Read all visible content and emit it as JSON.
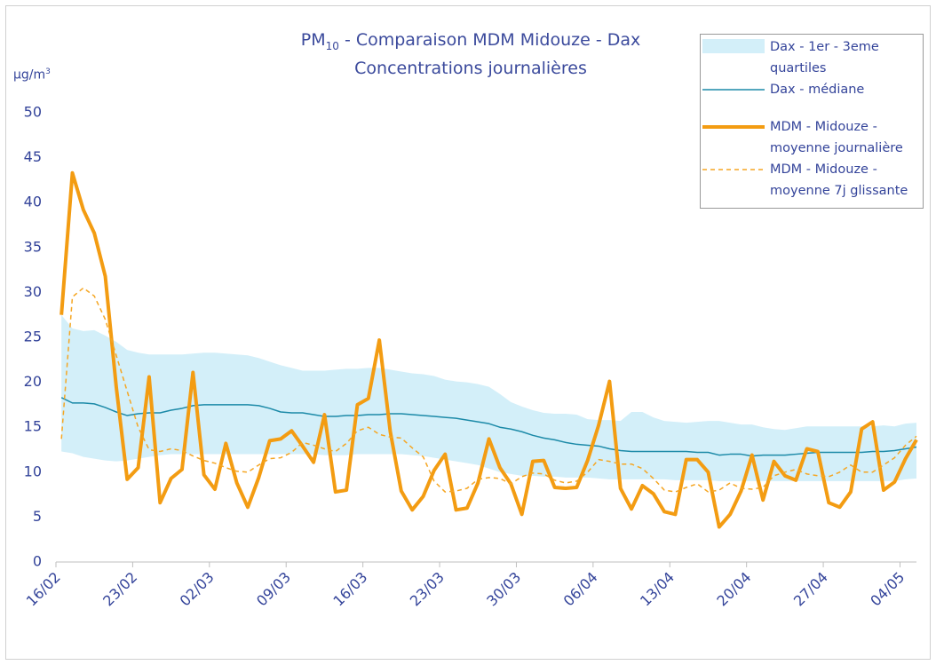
{
  "chart_data": {
    "type": "line",
    "title": {
      "main": "PM",
      "sub": "10",
      "rest": "- Comparaison MDM Midouze - Dax"
    },
    "subtitle": "Concentrations journalières",
    "y_label": {
      "unit": "µg/m",
      "sup": "3"
    },
    "ylim": [
      0,
      50
    ],
    "yticks": [
      0,
      5,
      10,
      15,
      20,
      25,
      30,
      35,
      40,
      45,
      50
    ],
    "grid": false,
    "legend": "top-right",
    "categories": [
      "16/02",
      null,
      null,
      null,
      null,
      null,
      null,
      "23/02",
      null,
      null,
      null,
      null,
      null,
      null,
      "02/03",
      null,
      null,
      null,
      null,
      null,
      null,
      "09/03",
      null,
      null,
      null,
      null,
      null,
      null,
      "16/03",
      null,
      null,
      null,
      null,
      null,
      null,
      "23/03",
      null,
      null,
      null,
      null,
      null,
      null,
      "30/03",
      null,
      null,
      null,
      null,
      null,
      null,
      "06/04",
      null,
      null,
      null,
      null,
      null,
      null,
      "13/04",
      null,
      null,
      null,
      null,
      null,
      null,
      "20/04",
      null,
      null,
      null,
      null,
      null,
      null,
      "27/04",
      null,
      null,
      null,
      null,
      null,
      null,
      "04/05",
      null
    ],
    "series": [
      {
        "name": "Dax - 1er - 3eme quartiles",
        "kind": "band",
        "color": "#d3eff9",
        "high": [
          27.5,
          26.0,
          25.7,
          25.8,
          25.2,
          24.5,
          23.6,
          23.3,
          23.1,
          23.1,
          23.1,
          23.1,
          23.2,
          23.3,
          23.3,
          23.2,
          23.1,
          23.0,
          22.7,
          22.3,
          21.9,
          21.6,
          21.3,
          21.3,
          21.3,
          21.4,
          21.5,
          21.5,
          21.6,
          21.6,
          21.4,
          21.2,
          21.0,
          20.9,
          20.7,
          20.3,
          20.1,
          20.0,
          19.8,
          19.5,
          18.7,
          17.8,
          17.3,
          16.9,
          16.6,
          16.5,
          16.5,
          16.4,
          15.9,
          15.8,
          15.8,
          15.7,
          16.7,
          16.7,
          16.1,
          15.7,
          15.6,
          15.5,
          15.6,
          15.7,
          15.7,
          15.5,
          15.3,
          15.3,
          15.0,
          14.8,
          14.7,
          14.9,
          15.1,
          15.1,
          15.1,
          15.1,
          15.1,
          15.1,
          15.1,
          15.2,
          15.1,
          15.4,
          15.5
        ],
        "low": [
          12.3,
          12.1,
          11.7,
          11.5,
          11.3,
          11.2,
          11.3,
          11.5,
          11.7,
          11.9,
          12.0,
          12.0,
          12.0,
          12.0,
          12.0,
          12.0,
          12.0,
          12.0,
          12.0,
          12.0,
          12.0,
          12.0,
          12.0,
          12.0,
          11.9,
          11.9,
          11.9,
          12.0,
          12.0,
          12.0,
          12.0,
          12.0,
          11.9,
          11.8,
          11.6,
          11.4,
          11.2,
          11.0,
          10.8,
          10.4,
          10.0,
          9.8,
          9.6,
          9.6,
          9.5,
          9.5,
          9.4,
          9.4,
          9.4,
          9.3,
          9.2,
          9.2,
          9.2,
          9.2,
          9.2,
          9.2,
          9.1,
          9.1,
          9.1,
          9.1,
          9.0,
          9.0,
          9.0,
          9.0,
          9.0,
          9.0,
          9.0,
          9.0,
          9.0,
          9.0,
          9.0,
          9.0,
          9.0,
          9.0,
          9.0,
          9.0,
          9.0,
          9.2,
          9.3
        ]
      },
      {
        "name": "Dax - médiane",
        "kind": "line",
        "color": "#1c8aa8",
        "width": 1.5,
        "values": [
          18.3,
          17.7,
          17.7,
          17.6,
          17.2,
          16.7,
          16.3,
          16.5,
          16.6,
          16.6,
          16.9,
          17.1,
          17.4,
          17.5,
          17.5,
          17.5,
          17.5,
          17.5,
          17.4,
          17.1,
          16.7,
          16.6,
          16.6,
          16.4,
          16.2,
          16.2,
          16.3,
          16.3,
          16.4,
          16.4,
          16.5,
          16.5,
          16.4,
          16.3,
          16.2,
          16.1,
          16.0,
          15.8,
          15.6,
          15.4,
          15.0,
          14.8,
          14.5,
          14.1,
          13.8,
          13.6,
          13.3,
          13.1,
          13.0,
          12.9,
          12.6,
          12.4,
          12.3,
          12.3,
          12.3,
          12.3,
          12.3,
          12.3,
          12.2,
          12.2,
          11.9,
          12.0,
          12.0,
          11.8,
          11.9,
          11.9,
          11.9,
          12.0,
          12.1,
          12.2,
          12.2,
          12.2,
          12.2,
          12.2,
          12.3,
          12.3,
          12.4,
          12.6,
          12.8
        ]
      },
      {
        "name": "MDM - Midouze - moyenne journalière",
        "kind": "line",
        "color": "#f39c12",
        "width": 4,
        "values": [
          27.5,
          43.3,
          39.2,
          36.6,
          31.8,
          19.5,
          9.2,
          10.5,
          20.6,
          6.6,
          9.3,
          10.3,
          21.1,
          9.7,
          8.1,
          13.2,
          8.8,
          6.1,
          9.4,
          13.5,
          13.7,
          14.6,
          12.9,
          11.1,
          16.4,
          7.8,
          8.0,
          17.5,
          18.2,
          24.7,
          14.5,
          7.9,
          5.8,
          7.3,
          10.2,
          12.0,
          5.8,
          6.0,
          8.8,
          13.7,
          10.5,
          8.7,
          5.3,
          11.2,
          11.3,
          8.3,
          8.2,
          8.3,
          11.3,
          15.2,
          20.1,
          8.2,
          5.9,
          8.5,
          7.6,
          5.6,
          5.3,
          11.4,
          11.4,
          10.0,
          3.9,
          5.3,
          7.9,
          11.9,
          6.9,
          11.2,
          9.6,
          9.1,
          12.6,
          12.3,
          6.6,
          6.1,
          7.8,
          14.8,
          15.6,
          8.0,
          8.9,
          11.5,
          13.6
        ]
      },
      {
        "name": "MDM - Midouze - moyenne 7j glissante",
        "kind": "line",
        "color": "#f5a623",
        "width": 1.5,
        "dash": "5 4",
        "values": [
          13.7,
          29.5,
          30.5,
          29.6,
          27.0,
          23.0,
          19.0,
          15.0,
          12.5,
          12.3,
          12.6,
          12.4,
          11.8,
          11.3,
          11.0,
          10.5,
          10.1,
          10.0,
          10.8,
          11.5,
          11.6,
          12.2,
          13.3,
          13.0,
          12.6,
          12.3,
          13.2,
          14.6,
          15.0,
          14.2,
          13.9,
          13.8,
          12.7,
          11.7,
          9.0,
          7.8,
          7.9,
          8.2,
          9.2,
          9.4,
          9.3,
          8.7,
          9.5,
          9.9,
          9.8,
          9.1,
          8.8,
          9.0,
          10.0,
          11.4,
          11.2,
          10.9,
          10.9,
          10.4,
          9.3,
          8.0,
          7.8,
          8.3,
          8.7,
          7.8,
          8.0,
          8.8,
          8.2,
          8.1,
          8.3,
          9.6,
          10.0,
          10.3,
          9.8,
          9.6,
          9.5,
          10.0,
          10.8,
          10.0,
          10.0,
          10.8,
          11.6,
          13.0,
          14.0
        ]
      }
    ]
  }
}
